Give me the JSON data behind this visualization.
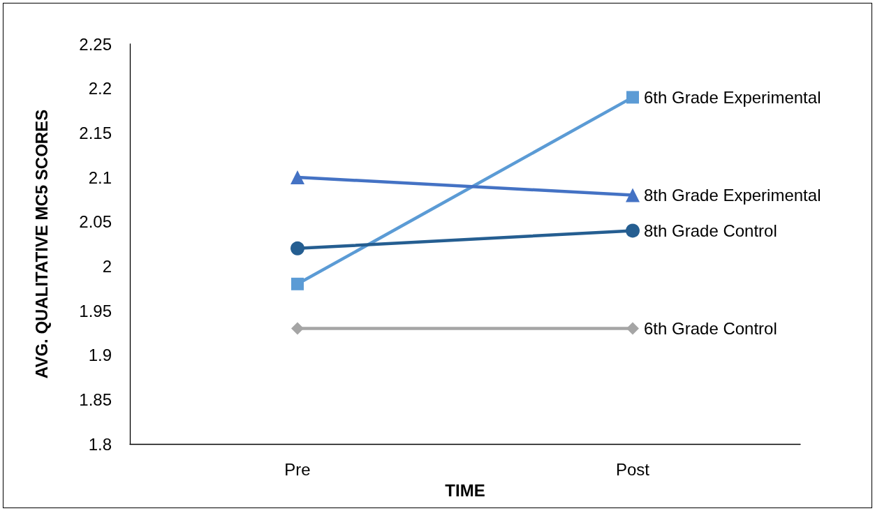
{
  "chart_data": {
    "type": "line",
    "xlabel": "TIME",
    "ylabel": "AVG. QUALITATIVE MC5 SCORES",
    "categories": [
      "Pre",
      "Post"
    ],
    "series": [
      {
        "name": "6th Grade Experimental",
        "color": "#5b9bd5",
        "marker": "square",
        "values": [
          1.98,
          2.19
        ]
      },
      {
        "name": "8th Grade Experimental",
        "color": "#4472c4",
        "marker": "triangle",
        "values": [
          2.1,
          2.08
        ]
      },
      {
        "name": "8th Grade Control",
        "color": "#255e91",
        "marker": "circle",
        "values": [
          2.02,
          2.04
        ]
      },
      {
        "name": "6th Grade Control",
        "color": "#a5a5a5",
        "marker": "diamond",
        "values": [
          1.93,
          1.93
        ]
      }
    ],
    "ylim": [
      1.8,
      2.25
    ],
    "yticks": [
      1.8,
      1.85,
      1.9,
      1.95,
      2,
      2.05,
      2.1,
      2.15,
      2.2,
      2.25
    ],
    "grid": false,
    "legend": false,
    "line_style": "solid"
  }
}
